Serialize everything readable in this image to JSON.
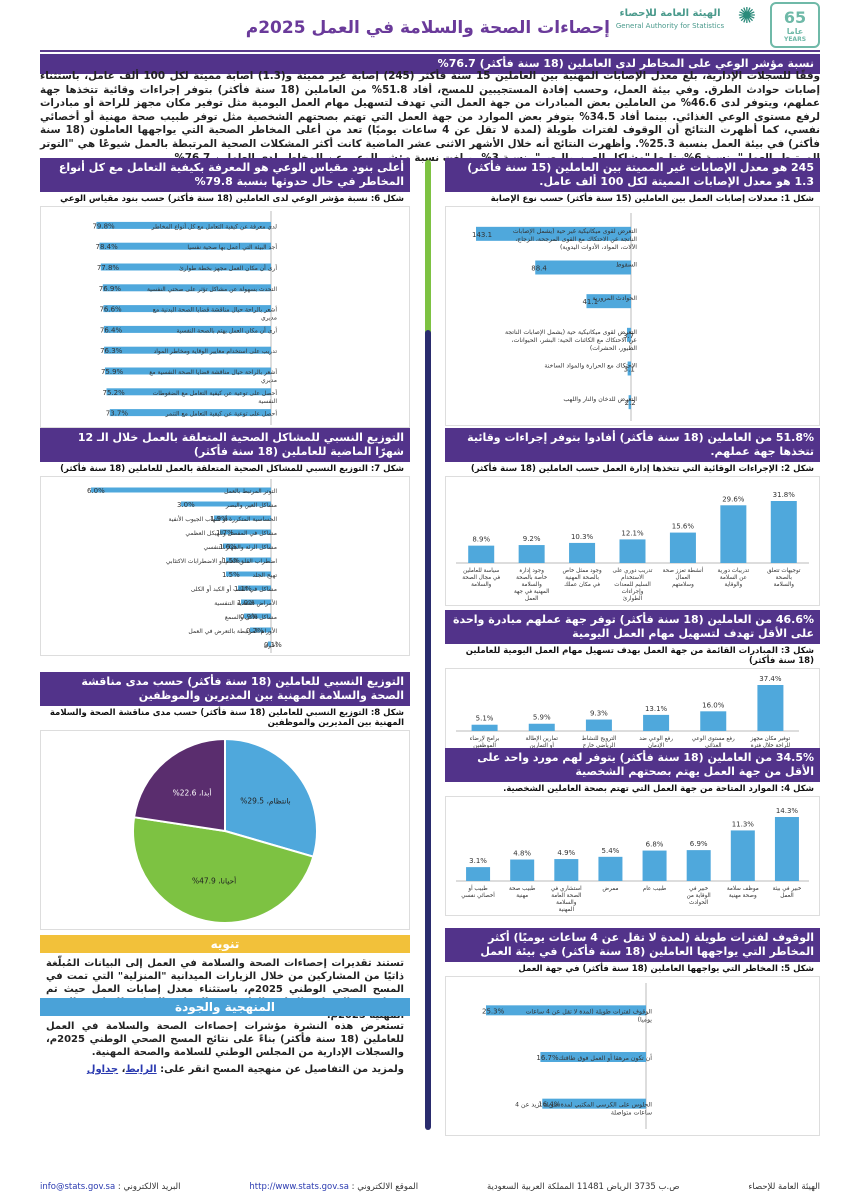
{
  "header": {
    "title": "إحصاءات الصحة والسلامة في العمل 2025م",
    "logo_ar": "الهيئة العامة للإحصاء",
    "logo_en": "General Authority for Statistics",
    "anniv_num": "65",
    "anniv_ar": "عاما",
    "anniv_en": "YEARS"
  },
  "intro": {
    "heading": "نسبة مؤشر الوعي على المخاطر لدى العاملين (18 سنة فأكثر) 76.7%",
    "text": "وفقًا للسجلات الإدارية، بلغ معدل الإصابات المهنية بين العاملين 15 سنة فأكثر (245) إصابة غير مميتة و(1.3) اصابة مميتة لكل 100 ألف عامل، باستثناء إصابات حوادث الطرق. وفي بيئة العمل، وحسب إفادة المستجيبين للمسح، أفاد 51.8% من العاملين (18 سنة فأكثر) بتوفر إجراءات وقائية تتخذها جهة عملهم، ويتوفر لدى 46.6% من العاملين بعض المبادرات من جهة العمل التي تهدف لتسهيل مهام العمل اليومية مثل توفير مكان مجهز للراحة أو مبادرات لرفع مستوى الوعي الغذائي. بينما أفاد 34.5% بتوفر بعض الموارد من جهة العمل التي تهتم بصحتهم الشخصية مثل توفر طبيب صحة مهنية أو أخصائي نفسي، كما أظهرت النتائج أن الوقوف لفترات طويلة (لمدة لا تقل عن 4 ساعات يوميًا) تعد من أعلى المخاطر الصحية التي يواجهها العاملون (18 سنة فأكثر) في بيئة العمل بنسبة 25.3%. وأظهرت النتائج أنه خلال الأشهر الاثنى عشر الماضية كانت أكثر المشكلات الصحية المرتبطة بالعمل شيوعًا هي \"التوتر المرتبط بالعمل\" بنسبة 6%، تليها \"مشاكل العين والبصر\" بنسبة 3%. وبلغت نسبة مؤشر الوعي عن المخاطر لدى العاملين 76.7%"
  },
  "s1": {
    "heading": "245 هو معدل الإصابات غير المميتة بين العاملين (15 سنة فأكثر) 1.3 هو معدل الإصابات المميتة لكل 100 ألف عامل.",
    "caption": "شكل 1: معدلات إصابات العمل بين العاملين (15 سنة فأكثر) حسب نوع الإصابة"
  },
  "s2": {
    "heading": "51.8% من العاملين (18 سنة فأكثر) أفادوا بتوفر إجراءات وقائية تتخذها جهة عملهم.",
    "caption": "شكل 2: الإجراءات الوقائية التي تتخذها إدارة العمل حسب العاملين (18 سنة فأكثر)"
  },
  "s3": {
    "heading": "46.6% من العاملين (18 سنة فأكثر) توفر جهة عملهم مبادرة واحدة على الأقل تهدف لتسهيل مهام العمل اليومية",
    "caption": "شكل 3: المبادرات القائمة من جهة العمل بهدف تسهيل مهام العمل اليومية للعاملين (18 سنة فأكثر)"
  },
  "s4": {
    "heading": "34.5% من العاملين (18 سنة فأكثر) يتوفر لهم مورد واحد على الأقل من جهة العمل يهتم بصحتهم الشخصية",
    "caption": "شكل 4: الموارد المتاحة من جهة العمل التي تهتم بصحة العاملين الشخصية."
  },
  "s5": {
    "heading": "الوقوف لفترات طويلة (لمدة لا تقل عن 4 ساعات يوميًا) أكثر المخاطر التي يواجهها العاملين (18 سنة فأكثر) في بيئة العمل",
    "caption": "شكل 5: المخاطر التي يواجهها العاملين (18 سنة فأكثر) في جهة العمل"
  },
  "s6": {
    "heading": "أعلى بنود مقياس الوعي هو المعرفة بكيفية التعامل مع كل أنواع المخاطر في حال حدوثها بنسبة 79.8%",
    "caption": "شكل 6: نسبة مؤشر الوعي لدى العاملين (18 سنة فأكثر) حسب بنود مقياس الوعي"
  },
  "s7": {
    "heading": "التوزيع النسبي للمشاكل الصحية المتعلقة بالعمل خلال الـ 12 شهرًا الماضية للعاملين (18 سنة فأكثر)",
    "caption": "شكل 7: التوزيع النسبي للمشاكل الصحية المتعلقة بالعمل للعاملين (18 سنة فأكثر)"
  },
  "s8": {
    "heading": "التوزيع النسبي للعاملين (18 سنة فأكثر) حسب مدى مناقشة الصحة والسلامة المهنية بين المديرين والموظفين",
    "caption": "شكل 8: التوزيع النسبي للعاملين (18 سنة فأكثر) حسب مدى مناقشة الصحة والسلامة المهنية بين المديرين والموظفين"
  },
  "note": {
    "heading": "تنويه",
    "text": "تستند تقديرات إحصاءات الصحة والسلامة في العمل إلى البيانات المُبلّغة ذاتيًا من المشاركين من خلال الزيارات الميدانية \"المنزلية\" التي تمت في المسح الصحي الوطني 2025م، باستثناء معدل إصابات العمل حيث تم حسابه من السجلات الإدارية الواردة من المجلس الوطني للسلامة والصحة المهنية 2025م."
  },
  "method": {
    "heading": "المنهجية والجودة",
    "text": "تستعرض هذه النشرة مؤشرات إحصاءات الصحة والسلامة في العمل للعاملين (18 سنة فأكثر) بناءً على نتائج المسح الصحي الوطني 2025م، والسجلات الإدارية من المجلس الوطني للسلامة والصحة المهنية.",
    "more": "ولمزيد من التفاصيل عن منهجية المسح انقر على:",
    "link1": "الرابط",
    "link2": "جداول"
  },
  "footer": {
    "org": "الهيئة العامة للإحصاء",
    "address": "ص.ب 3735 الرياض 11481 المملكة العربية السعودية",
    "site_label": "الموقع الالكتروني :",
    "site": "http://www.stats.gov.sa",
    "email_label": "البريد الالكتروني :",
    "email": "info@stats.gov.sa"
  },
  "chart_data": [
    {
      "id": "fig1",
      "type": "bar",
      "orientation": "horizontal",
      "categories": [
        "التعرض لقوى ميكانيكية غير حية (يشمل الإصابات الناتجة عن الاحتكاك مع القوى المرجحة، الزجاج، الآلات، المواد، الأدوات اليدوية)",
        "السقوط",
        "الحوادث المرورية",
        "التعرض لقوى ميكانيكية حية (يشمل الإصابات الناتجة عن الاحتكاك مع الكائنات الحية: البشر، الحيوانات، الطيور، الحشرات)",
        "الاحتكاك مع الحرارة والمواد الساخنة",
        "التعرض للدخان والنار واللهب"
      ],
      "values": [
        143.1,
        88.4,
        41.1,
        3.7,
        3.1,
        2.2
      ]
    },
    {
      "id": "fig2",
      "type": "bar",
      "categories": [
        "توجيهات تتعلق بالصحة والسلامة",
        "تدريبات دورية عن السلامة والوقاية",
        "أنشطة تعزز صحة العمال وسلامتهم",
        "تدريب دوري على الاستخدام السليم للمعدات وإجراءات الطوارئ",
        "وجود ممثل خاص بالصحة المهنية في مكان عملك",
        "وجود إدارة خاصة بالصحة والسلامة المهنية في جهة العمل",
        "سياسة للعاملين في مجال الصحة والسلامة"
      ],
      "values": [
        31.8,
        29.6,
        15.6,
        12.1,
        10.3,
        9.2,
        8.9
      ],
      "labels": [
        "31.8%",
        "29.6%",
        "15.6%",
        "12.1%",
        "10.3%",
        "9.2%",
        "8.9%"
      ]
    },
    {
      "id": "fig3",
      "type": "bar",
      "categories": [
        "توفير مكان مجهز للراحة خلال فترة الراحة",
        "رفع مستوى الوعي الغذائي",
        "رفع الوعي ضد الإدمان",
        "الترويج للنشاط الرياضي خارج ساعات العمل",
        "تمارين الإطالة أو التمارين البدنية في مكان العمل",
        "برامج لإرضاء الموظفين"
      ],
      "values": [
        37.4,
        16.0,
        13.1,
        9.3,
        5.9,
        5.1
      ],
      "labels": [
        "37.4%",
        "16.0%",
        "13.1%",
        "9.3%",
        "5.9%",
        "5.1%"
      ]
    },
    {
      "id": "fig4",
      "type": "bar",
      "categories": [
        "خبير في بيئة العمل",
        "موظف سلامة وصحة مهنية",
        "خبير في الوقاية من الحوادث",
        "طبيب عام",
        "ممرض",
        "استشاري في الصحة العامة والسلامة المهنية",
        "طبيب صحة مهنية",
        "طبيب أو أخصائي نفسي"
      ],
      "values": [
        14.3,
        11.3,
        6.9,
        6.8,
        5.4,
        4.9,
        4.8,
        3.1
      ],
      "labels": [
        "14.3%",
        "11.3%",
        "6.9%",
        "6.8%",
        "5.4%",
        "4.9%",
        "4.8%",
        "3.1%"
      ]
    },
    {
      "id": "fig5",
      "type": "bar",
      "orientation": "horizontal",
      "categories": [
        "الوقوف لفترات طويلة (لمدة لا تقل عن 4 ساعات يوميا)",
        "أن تكون مرهقا أو العمل فوق طاقتك",
        "الجلوس على الكرسي المكتبي لمدة طويلة تزيد عن 4 ساعات متواصلة"
      ],
      "values": [
        25.3,
        16.7,
        16.4
      ],
      "labels": [
        "25.3%",
        "16.7%",
        "16.4%"
      ]
    },
    {
      "id": "fig6",
      "type": "bar",
      "orientation": "horizontal",
      "categories": [
        "لدي معرفة عن كيفية التعامل مع كل أنواع المخاطر",
        "أجد البيئة التي أعمل بها صحية نفسيا",
        "أرى أن مكان العمل مجهز بخطة طوارئ",
        "التحدث بسهولة عن مشاكل تؤثر على صحتي النفسية",
        "أشعر بالراحة حيال مناقشة قضايا الصحة البدنية مع مديري",
        "أرى أن مكان العمل يهتم بالصحة النفسية",
        "تدريب على استخدام معايير الوقاية ومخاطر المواد",
        "أشعر بالراحة حيال مناقشة قضايا الصحة النفسية مع مديري",
        "أحصل على توعية عن كيفية التعامل مع الضغوطات النفسية",
        "أحصل على توعية عن كيفية التعامل مع التنمر"
      ],
      "values": [
        79.8,
        78.4,
        77.8,
        76.9,
        76.6,
        76.4,
        76.3,
        75.9,
        75.2,
        73.7
      ],
      "labels": [
        "79.8%",
        "78.4%",
        "77.8%",
        "76.9%",
        "76.6%",
        "76.4%",
        "76.3%",
        "75.9%",
        "75.2%",
        "73.7%"
      ]
    },
    {
      "id": "fig7",
      "type": "bar",
      "orientation": "horizontal",
      "categories": [
        "التوتر المرتبط بالعمل",
        "مشاكل العين والبصر",
        "الحساسية المتكررة أو التهاب الجيوب الأنفية",
        "مشاكل في المفصل والهيكل العظمي",
        "مشاكل الرئة والجهاز التنفسي",
        "اضطراب القلق العام أو الاضطرابات الاكتئابي",
        "تهيج الجلد",
        "مشاكل في القلب أو الكبد أو الكلى",
        "الأمراض المعدية التنفسية",
        "مشاكل الأذن والسمع",
        "الأورام المرتبطة بالتعرض في العمل",
        "أخرى"
      ],
      "values": [
        6.0,
        3.0,
        1.9,
        1.7,
        1.6,
        1.5,
        1.5,
        1.1,
        1.0,
        0.9,
        0.7,
        0.1
      ],
      "labels": [
        "6.0%",
        "3.0%",
        "1.9%",
        "1.7%",
        "1.6%",
        "1.5%",
        "1.5%",
        "1.1%",
        "1.0%",
        "0.9%",
        "0.7%",
        "0.1%"
      ]
    },
    {
      "id": "fig8",
      "type": "pie",
      "categories": [
        "بانتظام",
        "أحيانا",
        "أبدا"
      ],
      "values": [
        29.5,
        47.9,
        22.6
      ],
      "labels": [
        "بانتظام، 29.5%",
        "أحيانا، 47.9%",
        "أبدا، 22.6%"
      ],
      "colors": [
        "#4fa8dc",
        "#7dc242",
        "#5a2d6e"
      ]
    }
  ]
}
